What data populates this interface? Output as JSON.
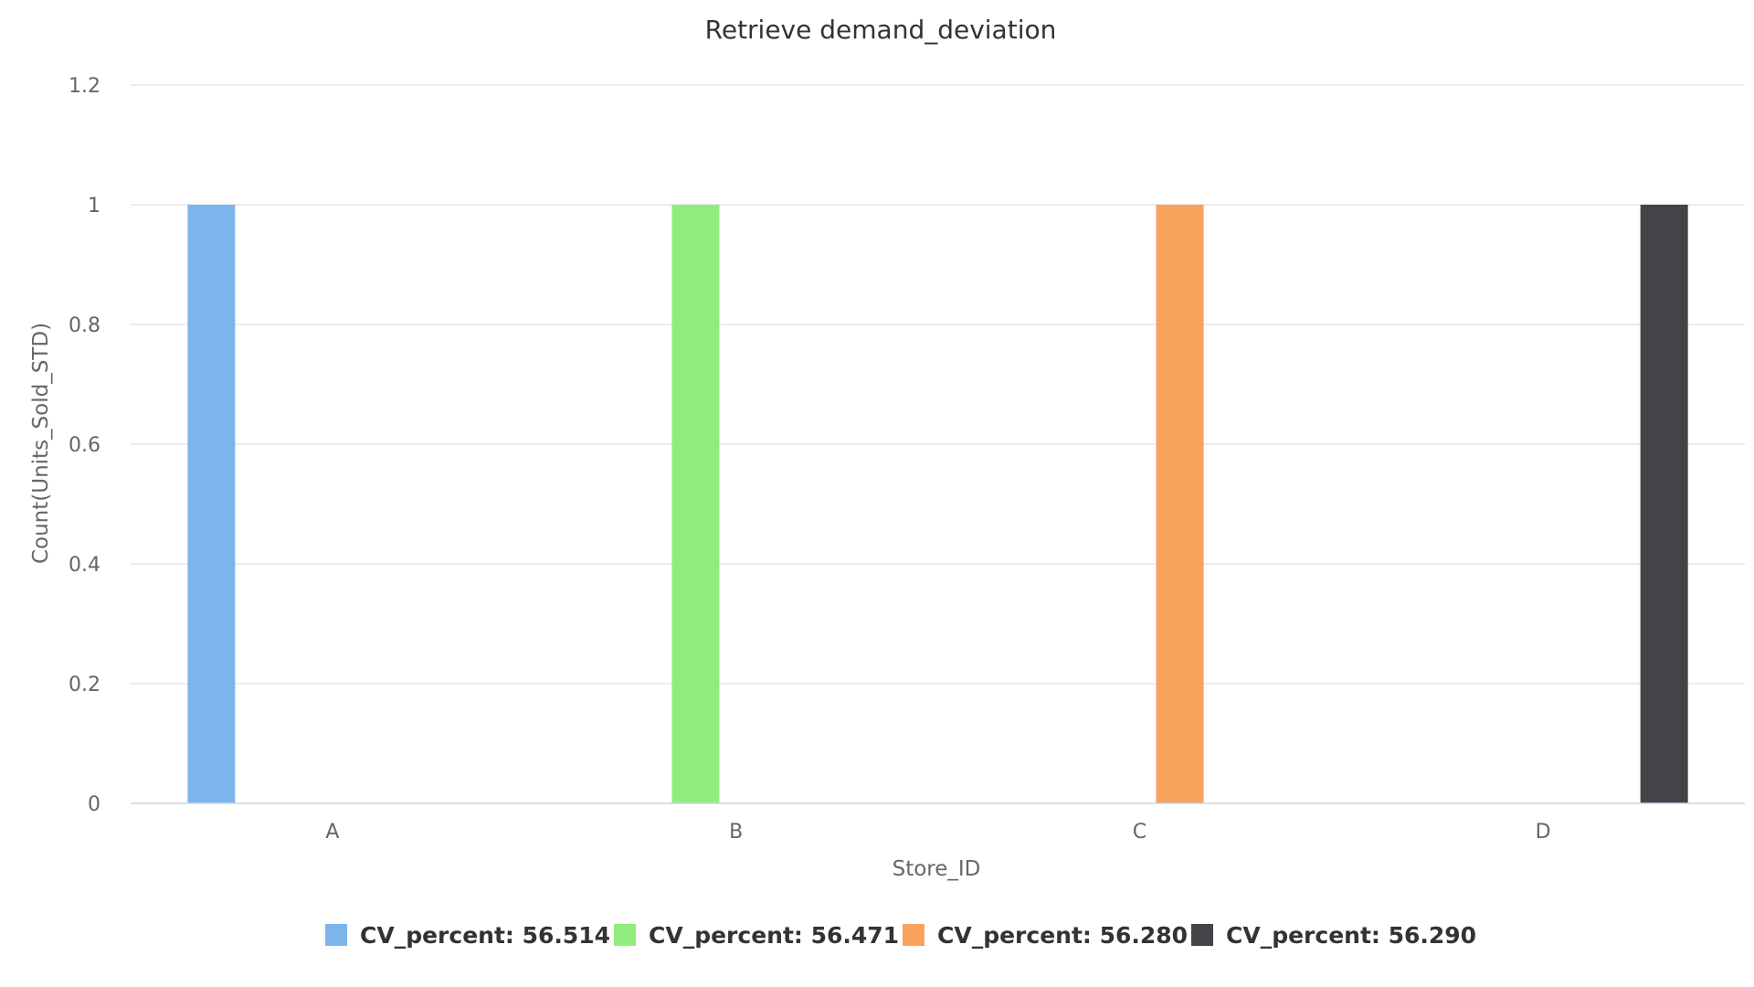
{
  "chart_data": {
    "type": "bar",
    "title": "Retrieve demand_deviation",
    "xlabel": "Store_ID",
    "ylabel": "Count(Units_Sold_STD)",
    "categories": [
      "A",
      "B",
      "C",
      "D"
    ],
    "ylim": [
      0,
      1.2
    ],
    "yticks": [
      0,
      0.2,
      0.4,
      0.6,
      0.8,
      1,
      1.2
    ],
    "ytick_labels": [
      "0",
      "0.2",
      "0.4",
      "0.6",
      "0.8",
      "1",
      "1.2"
    ],
    "grid": true,
    "legend_position": "bottom-center",
    "series": [
      {
        "name": "CV_percent: 56.514",
        "color": "#7cb5ec",
        "values": [
          1,
          0,
          0,
          0
        ]
      },
      {
        "name": "CV_percent: 56.471",
        "color": "#90ed7d",
        "values": [
          0,
          1,
          0,
          0
        ]
      },
      {
        "name": "CV_percent: 56.280",
        "color": "#f7a35c",
        "values": [
          0,
          0,
          1,
          0
        ]
      },
      {
        "name": "CV_percent: 56.290",
        "color": "#434348",
        "values": [
          0,
          0,
          0,
          1
        ]
      }
    ]
  }
}
